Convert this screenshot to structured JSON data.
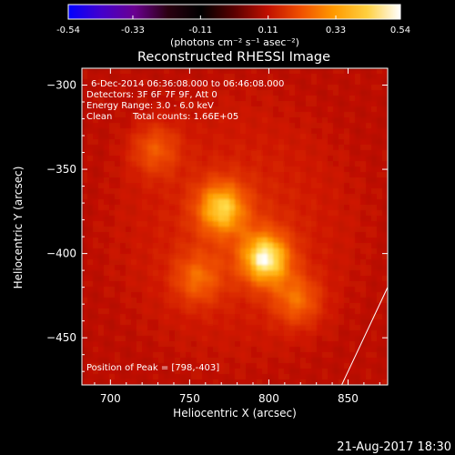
{
  "colorbar": {
    "ticks": [
      "-0.54",
      "-0.33",
      "-0.11",
      "0.11",
      "0.33",
      "0.54"
    ],
    "tick_values": [
      -0.54,
      -0.33,
      -0.11,
      0.11,
      0.33,
      0.54
    ],
    "range": [
      -0.54,
      0.54
    ],
    "unit_label": "(photons cm⁻² s⁻¹ asec⁻²)",
    "colormap": [
      "#0000ff",
      "#4400cc",
      "#6a0090",
      "#2a0010",
      "#000000",
      "#5a0000",
      "#c01000",
      "#f05000",
      "#ff9a00",
      "#ffd040",
      "#ffffff"
    ]
  },
  "chart_data": {
    "type": "heatmap",
    "title": "Reconstructed RHESSI Image",
    "xlabel": "Heliocentric X (arcsec)",
    "ylabel": "Heliocentric Y (arcsec)",
    "xlim": [
      682,
      875
    ],
    "ylim": [
      -478,
      -290
    ],
    "x_ticks": [
      700,
      750,
      800,
      850
    ],
    "y_ticks": [
      -300,
      -350,
      -400,
      -450
    ],
    "x_tick_labels": [
      "700",
      "750",
      "800",
      "850"
    ],
    "y_tick_labels": [
      "−300",
      "−350",
      "−400",
      "−450"
    ],
    "annotations": [
      "6-Dec-2014 06:36:08.000 to 06:46:08.000",
      "Detectors: 3F 6F 7F 9F, Att 0",
      "Energy Range: 3.0 - 6.0 keV",
      "Clean",
      "Total counts: 1.66E+05"
    ],
    "peak_label": "Position of Peak = [798,-403]",
    "peak": [
      798,
      -403
    ],
    "sources": [
      {
        "x": 798,
        "y": -403,
        "intensity": 1.0
      },
      {
        "x": 770,
        "y": -373,
        "intensity": 0.8
      },
      {
        "x": 728,
        "y": -338,
        "intensity": 0.45
      },
      {
        "x": 755,
        "y": -415,
        "intensity": 0.45
      },
      {
        "x": 818,
        "y": -428,
        "intensity": 0.5
      }
    ],
    "limb_line": [
      [
        846,
        -478
      ],
      [
        875,
        -420
      ]
    ]
  },
  "footer": {
    "timestamp": "21-Aug-2017 18:30"
  }
}
